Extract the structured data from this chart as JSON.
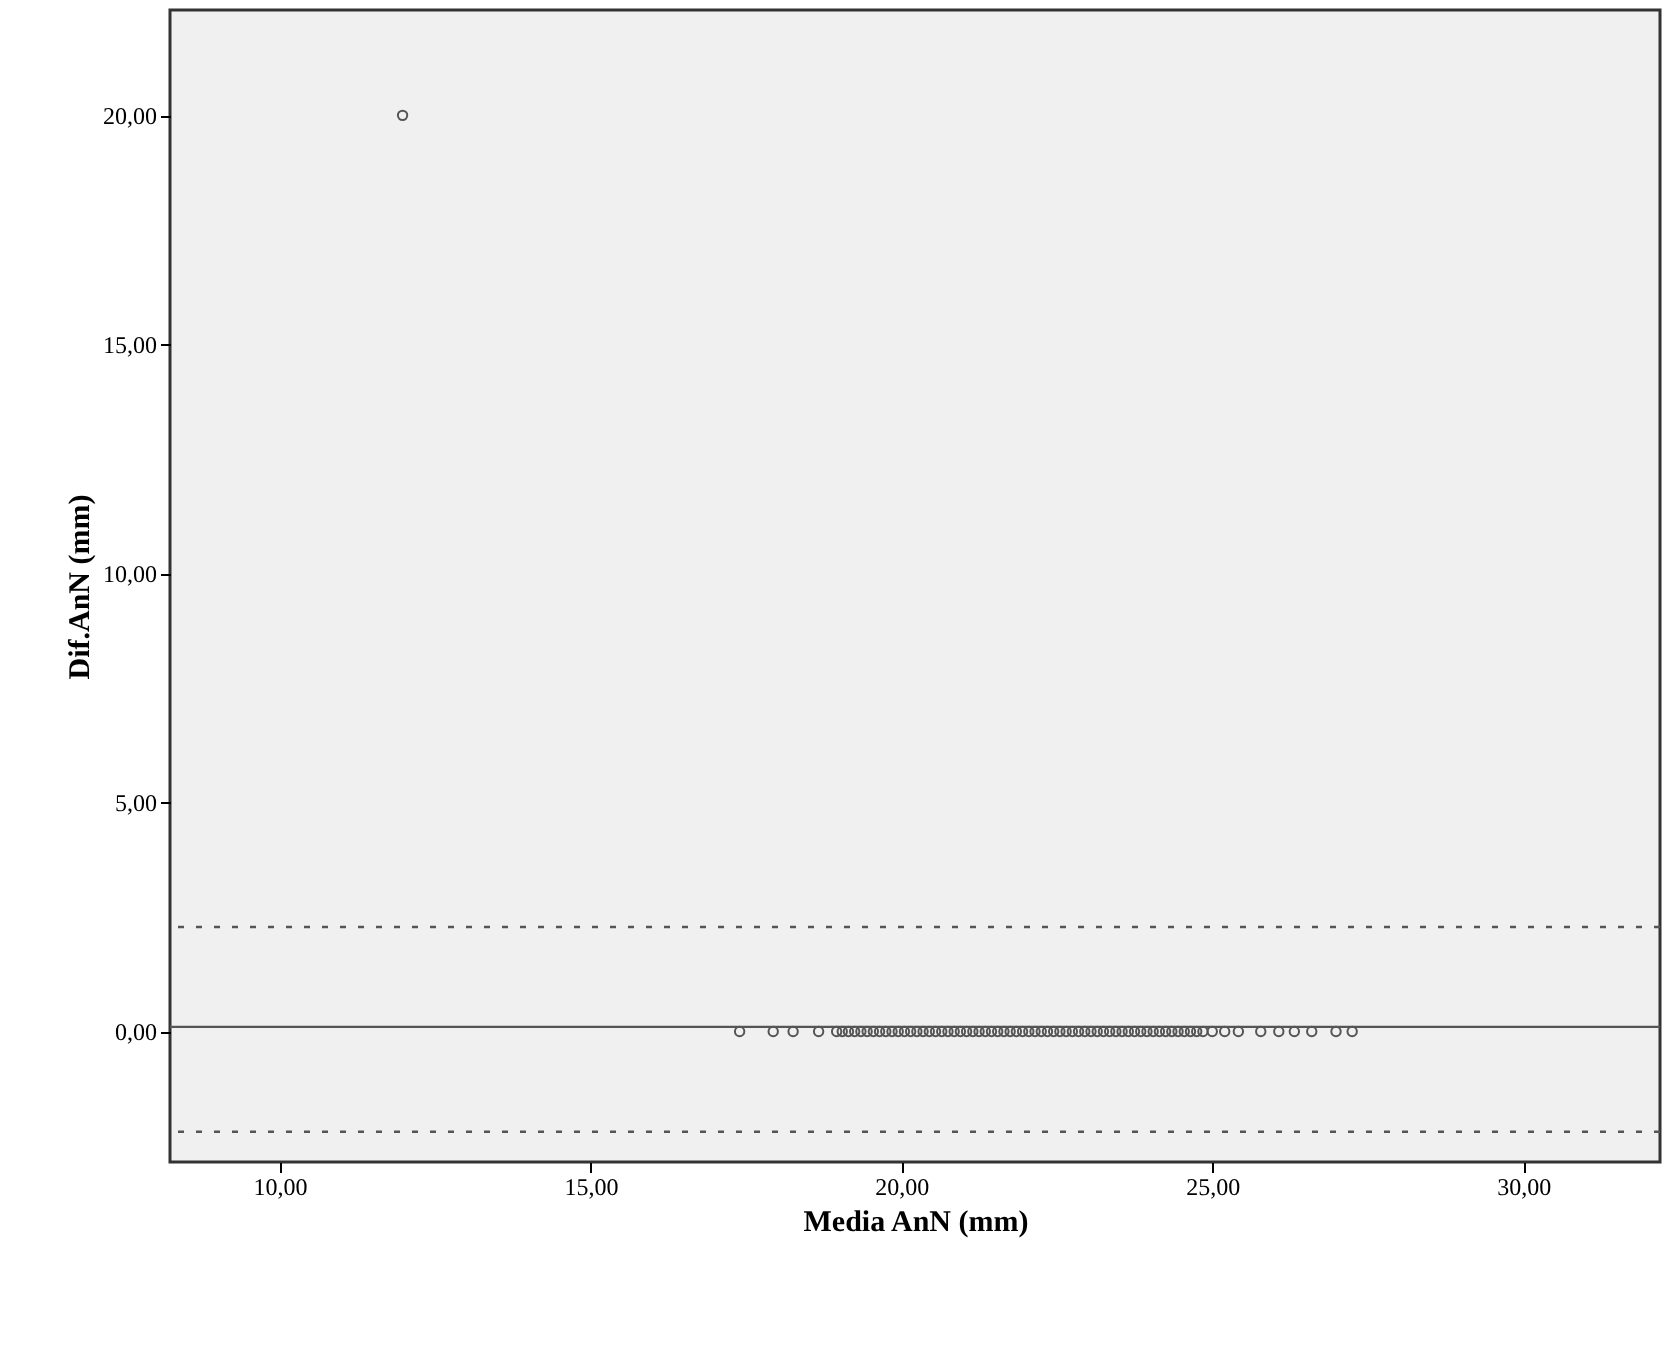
{
  "chart_data": {
    "type": "scatter",
    "xlabel": "Media AnN (mm)",
    "ylabel": "Dif.AnN (mm)",
    "x": [
      11.98,
      17.4,
      17.94,
      18.26,
      18.67,
      18.96,
      19.05,
      19.15,
      19.25,
      19.35,
      19.45,
      19.55,
      19.65,
      19.75,
      19.85,
      19.95,
      20.05,
      20.15,
      20.25,
      20.35,
      20.45,
      20.55,
      20.65,
      20.75,
      20.85,
      20.95,
      21.05,
      21.15,
      21.25,
      21.35,
      21.45,
      21.55,
      21.65,
      21.75,
      21.85,
      21.95,
      22.05,
      22.15,
      22.25,
      22.35,
      22.45,
      22.55,
      22.65,
      22.75,
      22.85,
      22.95,
      23.05,
      23.15,
      23.25,
      23.35,
      23.45,
      23.55,
      23.65,
      23.75,
      23.85,
      23.95,
      24.05,
      24.15,
      24.25,
      24.35,
      24.45,
      24.55,
      24.65,
      24.75,
      24.85,
      25.0,
      25.2,
      25.42,
      25.78,
      26.07,
      26.32,
      26.6,
      26.99,
      27.25
    ],
    "values": [
      20,
      0,
      0,
      0,
      0,
      0,
      0,
      0,
      0,
      0,
      0,
      0,
      0,
      0,
      0,
      0,
      0,
      0,
      0,
      0,
      0,
      0,
      0,
      0,
      0,
      0,
      0,
      0,
      0,
      0,
      0,
      0,
      0,
      0,
      0,
      0,
      0,
      0,
      0,
      0,
      0,
      0,
      0,
      0,
      0,
      0,
      0,
      0,
      0,
      0,
      0,
      0,
      0,
      0,
      0,
      0,
      0,
      0,
      0,
      0,
      0,
      0,
      0,
      0,
      0,
      0,
      0,
      0,
      0,
      0,
      0,
      0,
      0,
      0
    ],
    "color": "#555555",
    "marker": "circle",
    "grid": false,
    "xlim": [
      8.24,
      32.2
    ],
    "ylim": [
      -2.85,
      22.3
    ],
    "xticks": [
      {
        "value": 10,
        "label": "10,00"
      },
      {
        "value": 15,
        "label": "15,00"
      },
      {
        "value": 20,
        "label": "20,00"
      },
      {
        "value": 25,
        "label": "25,00"
      },
      {
        "value": 30,
        "label": "30,00"
      }
    ],
    "yticks": [
      {
        "value": 0,
        "label": "0,00"
      },
      {
        "value": 5,
        "label": "5,00"
      },
      {
        "value": 10,
        "label": "10,00"
      },
      {
        "value": 15,
        "label": "15,00"
      },
      {
        "value": 20,
        "label": "20,00"
      }
    ],
    "ref_lines": [
      {
        "axis": "y",
        "value": 0.1,
        "line_style": "solid",
        "color": "#555555"
      },
      {
        "axis": "y",
        "value": 2.28,
        "line_style": "dashed",
        "color": "#555555"
      },
      {
        "axis": "y",
        "value": -2.19,
        "line_style": "dashed",
        "color": "#555555"
      }
    ]
  }
}
